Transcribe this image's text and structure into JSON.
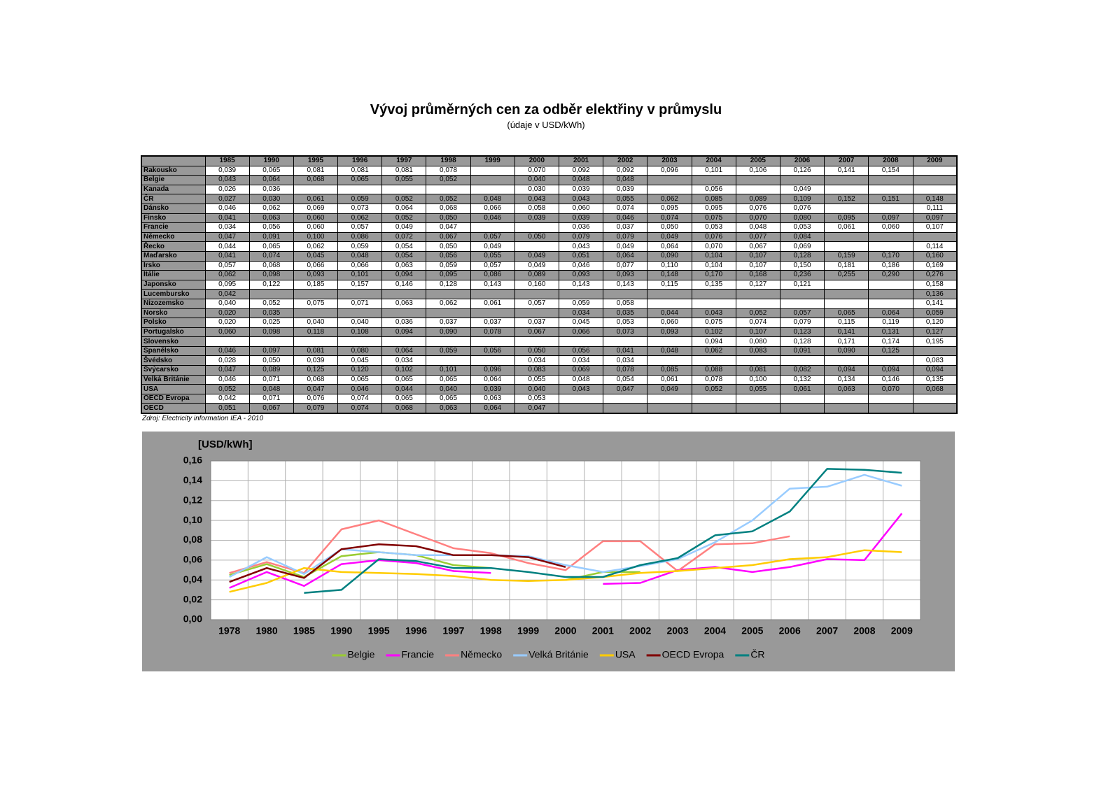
{
  "header": {
    "title": "Vývoj průměrných cen za odběr elektřiny v průmyslu",
    "subtitle": "(údaje v USD/kWh)"
  },
  "table": {
    "columns": [
      "1985",
      "1990",
      "1995",
      "1996",
      "1997",
      "1998",
      "1999",
      "2000",
      "2001",
      "2002",
      "2003",
      "2004",
      "2005",
      "2006",
      "2007",
      "2008",
      "2009"
    ],
    "rows": [
      {
        "label": "Rakousko",
        "cells": [
          "0,039",
          "0,065",
          "0,081",
          "0,081",
          "0,081",
          "0,078",
          null,
          "0,070",
          "0,092",
          "0,092",
          "0,096",
          "0,101",
          "0,106",
          "0,126",
          "0,141",
          "0,154",
          null
        ]
      },
      {
        "label": "Belgie",
        "cells": [
          "0,043",
          "0,064",
          "0,068",
          "0,065",
          "0,055",
          "0,052",
          null,
          "0,040",
          "0,048",
          "0,048",
          null,
          null,
          null,
          null,
          null,
          null,
          null
        ]
      },
      {
        "label": "Kanada",
        "cells": [
          "0,026",
          "0,036",
          null,
          null,
          null,
          null,
          null,
          "0,030",
          "0,039",
          "0,039",
          null,
          "0,056",
          null,
          "0,049",
          null,
          null,
          null
        ]
      },
      {
        "label": "ČR",
        "cells": [
          "0,027",
          "0,030",
          "0,061",
          "0,059",
          "0,052",
          "0,052",
          "0,048",
          "0,043",
          "0,043",
          "0,055",
          "0,062",
          "0,085",
          "0,089",
          "0,109",
          "0,152",
          "0,151",
          "0,148"
        ]
      },
      {
        "label": "Dánsko",
        "cells": [
          "0,046",
          "0,062",
          "0,069",
          "0,073",
          "0,064",
          "0,068",
          "0,066",
          "0,058",
          "0,060",
          "0,074",
          "0,095",
          "0,095",
          "0,076",
          "0,076",
          null,
          null,
          "0,111"
        ]
      },
      {
        "label": "Finsko",
        "cells": [
          "0,041",
          "0,063",
          "0,060",
          "0,062",
          "0,052",
          "0,050",
          "0,046",
          "0,039",
          "0,039",
          "0,046",
          "0,074",
          "0,075",
          "0,070",
          "0,080",
          "0,095",
          "0,097",
          "0,097"
        ]
      },
      {
        "label": "Francie",
        "cells": [
          "0,034",
          "0,056",
          "0,060",
          "0,057",
          "0,049",
          "0,047",
          null,
          null,
          "0,036",
          "0,037",
          "0,050",
          "0,053",
          "0,048",
          "0,053",
          "0,061",
          "0,060",
          "0,107"
        ]
      },
      {
        "label": "Německo",
        "cells": [
          "0,047",
          "0,091",
          "0,100",
          "0,086",
          "0,072",
          "0,067",
          "0,057",
          "0,050",
          "0,079",
          "0,079",
          "0,049",
          "0,076",
          "0,077",
          "0,084",
          null,
          null,
          null
        ]
      },
      {
        "label": "Řecko",
        "cells": [
          "0,044",
          "0,065",
          "0,062",
          "0,059",
          "0,054",
          "0,050",
          "0,049",
          null,
          "0,043",
          "0,049",
          "0,064",
          "0,070",
          "0,067",
          "0,069",
          null,
          null,
          "0,114"
        ]
      },
      {
        "label": "Maďarsko",
        "cells": [
          "0,041",
          "0,074",
          "0,045",
          "0,048",
          "0,054",
          "0,056",
          "0,055",
          "0,049",
          "0,051",
          "0,064",
          "0,090",
          "0,104",
          "0,107",
          "0,128",
          "0,159",
          "0,170",
          "0,160"
        ]
      },
      {
        "label": "Irsko",
        "cells": [
          "0,057",
          "0,068",
          "0,066",
          "0,066",
          "0,063",
          "0,059",
          "0,057",
          "0,049",
          "0,046",
          "0,077",
          "0,110",
          "0,104",
          "0,107",
          "0,150",
          "0,181",
          "0,186",
          "0,169"
        ]
      },
      {
        "label": "Itálie",
        "cells": [
          "0,062",
          "0,098",
          "0,093",
          "0,101",
          "0,094",
          "0,095",
          "0,086",
          "0,089",
          "0,093",
          "0,093",
          "0,148",
          "0,170",
          "0,168",
          "0,236",
          "0,255",
          "0,290",
          "0,276"
        ]
      },
      {
        "label": "Japonsko",
        "cells": [
          "0,095",
          "0,122",
          "0,185",
          "0,157",
          "0,146",
          "0,128",
          "0,143",
          "0,160",
          "0,143",
          "0,143",
          "0,115",
          "0,135",
          "0,127",
          "0,121",
          null,
          null,
          "0,158"
        ]
      },
      {
        "label": "Lucembursko",
        "cells": [
          "0,042",
          null,
          null,
          null,
          null,
          null,
          null,
          null,
          null,
          null,
          null,
          null,
          null,
          null,
          null,
          null,
          "0,136"
        ]
      },
      {
        "label": "Nizozemsko",
        "cells": [
          "0,040",
          "0,052",
          "0,075",
          "0,071",
          "0,063",
          "0,062",
          "0,061",
          "0,057",
          "0,059",
          "0,058",
          null,
          null,
          null,
          null,
          null,
          null,
          "0,141"
        ]
      },
      {
        "label": "Norsko",
        "cells": [
          "0,020",
          "0,035",
          null,
          null,
          null,
          null,
          null,
          null,
          "0,034",
          "0,035",
          "0,044",
          "0,043",
          "0,052",
          "0,057",
          "0,065",
          "0,064",
          "0,059"
        ]
      },
      {
        "label": "Polsko",
        "cells": [
          "0,020",
          "0,025",
          "0,040",
          "0,040",
          "0,036",
          "0,037",
          "0,037",
          "0,037",
          "0,045",
          "0,053",
          "0,060",
          "0,075",
          "0,074",
          "0,079",
          "0,115",
          "0,119",
          "0,120"
        ]
      },
      {
        "label": "Portugalsko",
        "cells": [
          "0,060",
          "0,098",
          "0,118",
          "0,108",
          "0,094",
          "0,090",
          "0,078",
          "0,067",
          "0,066",
          "0,073",
          "0,093",
          "0,102",
          "0,107",
          "0,123",
          "0,141",
          "0,131",
          "0,127"
        ]
      },
      {
        "label": "Slovensko",
        "cells": [
          null,
          null,
          null,
          null,
          null,
          null,
          null,
          null,
          null,
          null,
          null,
          "0,094",
          "0,080",
          "0,128",
          "0,171",
          "0,174",
          "0,195"
        ]
      },
      {
        "label": "Španělsko",
        "cells": [
          "0,046",
          "0,097",
          "0,081",
          "0,080",
          "0,064",
          "0,059",
          "0,056",
          "0,050",
          "0,056",
          "0,041",
          "0,048",
          "0,062",
          "0,083",
          "0,091",
          "0,090",
          "0,125",
          null
        ]
      },
      {
        "label": "Švédsko",
        "cells": [
          "0,028",
          "0,050",
          "0,039",
          "0,045",
          "0,034",
          null,
          null,
          "0,034",
          "0,034",
          "0,034",
          null,
          null,
          null,
          null,
          null,
          null,
          "0,083"
        ]
      },
      {
        "label": "Švýcarsko",
        "cells": [
          "0,047",
          "0,089",
          "0,125",
          "0,120",
          "0,102",
          "0,101",
          "0,096",
          "0,083",
          "0,069",
          "0,078",
          "0,085",
          "0,088",
          "0,081",
          "0,082",
          "0,094",
          "0,094",
          "0,094"
        ]
      },
      {
        "label": "Velká Británie",
        "cells": [
          "0,046",
          "0,071",
          "0,068",
          "0,065",
          "0,065",
          "0,065",
          "0,064",
          "0,055",
          "0,048",
          "0,054",
          "0,061",
          "0,078",
          "0,100",
          "0,132",
          "0,134",
          "0,146",
          "0,135"
        ]
      },
      {
        "label": "USA",
        "cells": [
          "0,052",
          "0,048",
          "0,047",
          "0,046",
          "0,044",
          "0,040",
          "0,039",
          "0,040",
          "0,043",
          "0,047",
          "0,049",
          "0,052",
          "0,055",
          "0,061",
          "0,063",
          "0,070",
          "0,068"
        ]
      },
      {
        "label": "OECD Evropa",
        "cells": [
          "0,042",
          "0,071",
          "0,076",
          "0,074",
          "0,065",
          "0,065",
          "0,063",
          "0,053",
          null,
          null,
          null,
          null,
          null,
          null,
          null,
          null,
          null
        ]
      },
      {
        "label": "OECD",
        "cells": [
          "0,051",
          "0,067",
          "0,079",
          "0,074",
          "0,068",
          "0,063",
          "0,064",
          "0,047",
          null,
          null,
          null,
          null,
          null,
          null,
          null,
          null,
          null
        ]
      }
    ]
  },
  "source": "Zdroj: Electricity information IEA - 2010",
  "chart_data": {
    "type": "line",
    "y_label": "[USD/kWh]",
    "categories": [
      "1978",
      "1980",
      "1985",
      "1990",
      "1995",
      "1996",
      "1997",
      "1998",
      "1999",
      "2000",
      "2001",
      "2002",
      "2003",
      "2004",
      "2005",
      "2006",
      "2007",
      "2008",
      "2009"
    ],
    "ylim": [
      0,
      0.16
    ],
    "yticks": [
      {
        "value": 0,
        "label": "0,00"
      },
      {
        "value": 0.02,
        "label": "0,02"
      },
      {
        "value": 0.04,
        "label": "0,04"
      },
      {
        "value": 0.06,
        "label": "0,06"
      },
      {
        "value": 0.08,
        "label": "0,08"
      },
      {
        "value": 0.1,
        "label": "0,10"
      },
      {
        "value": 0.12,
        "label": "0,12"
      },
      {
        "value": 0.14,
        "label": "0,14"
      },
      {
        "value": 0.16,
        "label": "0,16"
      }
    ],
    "grid": true,
    "legend": "bottom",
    "series": [
      {
        "name": "Belgie",
        "color": "#99cc33",
        "values": [
          0.045,
          0.056,
          0.043,
          0.064,
          0.068,
          0.065,
          0.055,
          0.052,
          null,
          0.04,
          0.048,
          0.048,
          null,
          null,
          null,
          null,
          null,
          null,
          null
        ]
      },
      {
        "name": "Francie",
        "color": "#ff00ff",
        "values": [
          0.032,
          0.048,
          0.034,
          0.056,
          0.06,
          0.057,
          0.049,
          0.047,
          null,
          null,
          0.036,
          0.037,
          0.05,
          0.053,
          0.048,
          0.053,
          0.061,
          0.06,
          0.107
        ]
      },
      {
        "name": "Německo",
        "color": "#ff8080",
        "values": [
          0.047,
          0.058,
          0.047,
          0.091,
          0.1,
          0.086,
          0.072,
          0.067,
          0.057,
          0.05,
          0.079,
          0.079,
          0.049,
          0.076,
          0.077,
          0.084,
          null,
          null,
          null
        ]
      },
      {
        "name": "Velká Británie",
        "color": "#99ccff",
        "values": [
          0.043,
          0.063,
          0.046,
          0.071,
          0.068,
          0.065,
          0.065,
          0.065,
          0.064,
          0.055,
          0.048,
          0.054,
          0.061,
          0.078,
          0.1,
          0.132,
          0.134,
          0.146,
          0.135
        ]
      },
      {
        "name": "USA",
        "color": "#ffcc00",
        "values": [
          0.028,
          0.037,
          0.052,
          0.048,
          0.047,
          0.046,
          0.044,
          0.04,
          0.039,
          0.04,
          0.043,
          0.047,
          0.049,
          0.052,
          0.055,
          0.061,
          0.063,
          0.07,
          0.068
        ]
      },
      {
        "name": "OECD Evropa",
        "color": "#800000",
        "values": [
          0.038,
          0.052,
          0.042,
          0.071,
          0.076,
          0.074,
          0.065,
          0.065,
          0.063,
          0.053,
          null,
          null,
          null,
          null,
          null,
          null,
          null,
          null,
          null
        ]
      },
      {
        "name": "ČR",
        "color": "#008080",
        "values": [
          null,
          null,
          0.027,
          0.03,
          0.061,
          0.059,
          0.052,
          0.052,
          0.048,
          0.043,
          0.043,
          0.055,
          0.062,
          0.085,
          0.089,
          0.109,
          0.152,
          0.151,
          0.148
        ]
      }
    ]
  }
}
